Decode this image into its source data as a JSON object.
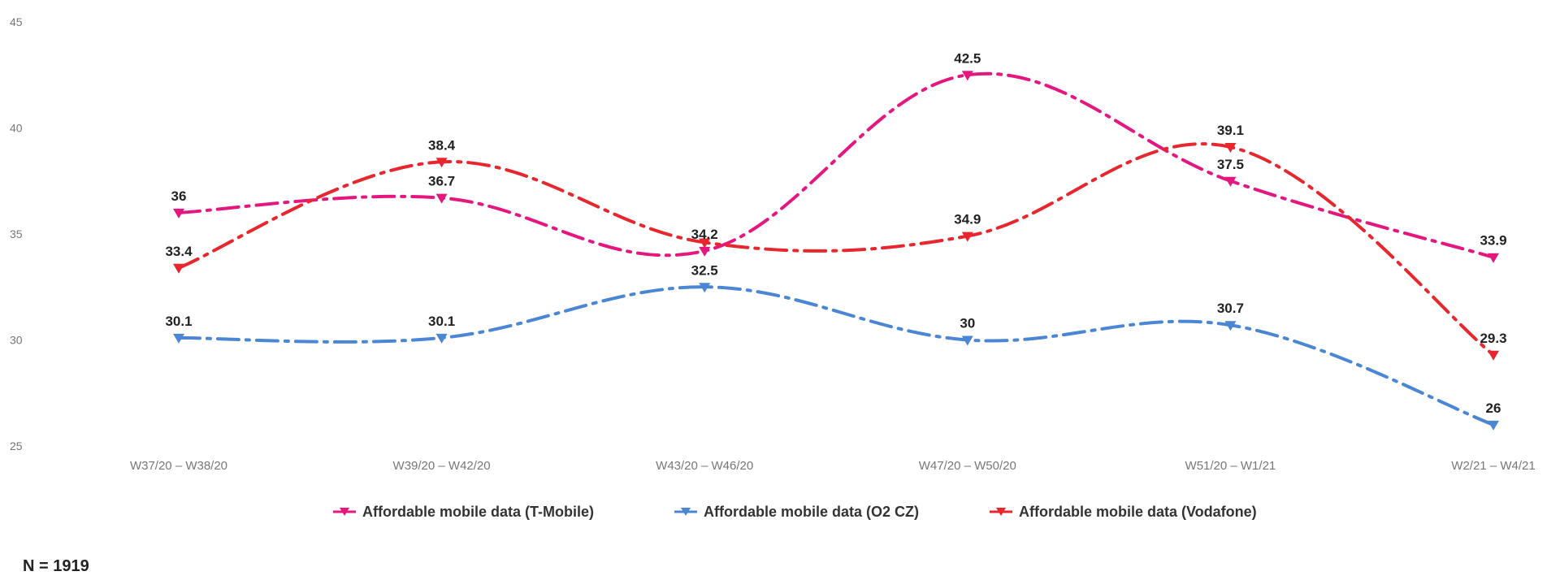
{
  "chart_data": {
    "type": "line",
    "categories": [
      "W37/20 – W38/20",
      "W39/20 – W42/20",
      "W43/20 – W46/20",
      "W47/20 – W50/20",
      "W51/20 – W1/21",
      "W2/21 – W4/21"
    ],
    "series": [
      {
        "name": "Affordable mobile data (T-Mobile)",
        "color": "#e5177e",
        "values": [
          36,
          36.7,
          34.2,
          42.5,
          37.5,
          33.9
        ]
      },
      {
        "name": "Affordable mobile data (O2 CZ)",
        "color": "#4a86d4",
        "values": [
          30.1,
          30.1,
          32.5,
          30,
          30.7,
          26
        ]
      },
      {
        "name": "Affordable mobile data (Vodafone)",
        "color": "#e8262d",
        "values": [
          33.4,
          38.4,
          34.6,
          34.9,
          39.1,
          29.3
        ]
      }
    ],
    "data_labels": [
      [
        "36",
        "36.7",
        "34.2",
        "42.5",
        "37.5",
        "33.9"
      ],
      [
        "30.1",
        "30.1",
        "32.5",
        "30",
        "30.7",
        "26"
      ],
      [
        "33.4",
        "38.4",
        "",
        "34.9",
        "39.1",
        "29.3"
      ]
    ],
    "yticks": [
      "45",
      "40",
      "35",
      "30",
      "25"
    ],
    "ylim": [
      25,
      45
    ],
    "grid": false,
    "legend_position": "bottom",
    "line_style": "dash-dot smooth"
  },
  "footnote": "N = 1919"
}
